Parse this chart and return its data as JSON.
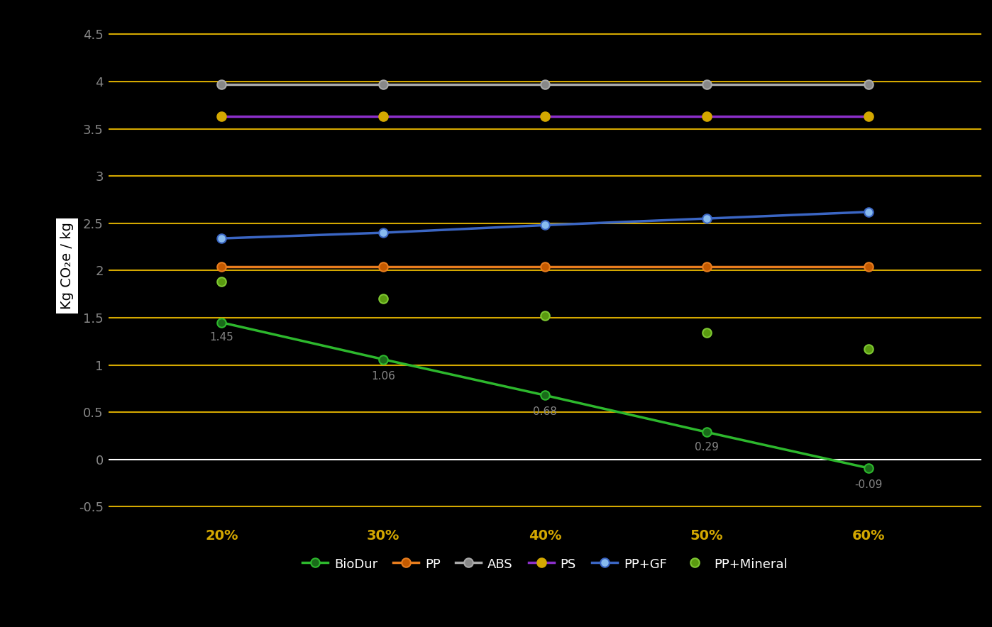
{
  "x_labels": [
    "20%",
    "30%",
    "40%",
    "50%",
    "60%"
  ],
  "x_values": [
    20,
    30,
    40,
    50,
    60
  ],
  "series": {
    "BioDur": {
      "values": [
        1.45,
        1.06,
        0.68,
        0.29,
        -0.09
      ],
      "line_color": "#2db82d",
      "marker_face": "#1a6b1a",
      "marker_edge": "#2db82d",
      "linewidth": 2.5,
      "zorder": 5
    },
    "PP": {
      "values": [
        2.04,
        2.04,
        2.04,
        2.04,
        2.04
      ],
      "line_color": "#e87d1e",
      "marker_face": "#c45a00",
      "marker_edge": "#e87d1e",
      "linewidth": 2.5,
      "zorder": 4
    },
    "ABS": {
      "values": [
        3.97,
        3.97,
        3.97,
        3.97,
        3.97
      ],
      "line_color": "#aaaaaa",
      "marker_face": "#888888",
      "marker_edge": "#aaaaaa",
      "linewidth": 2.5,
      "zorder": 4
    },
    "PS": {
      "values": [
        3.63,
        3.63,
        3.63,
        3.63,
        3.63
      ],
      "line_color": "#8b2fc9",
      "marker_face": "#d4a800",
      "marker_edge": "#d4a800",
      "linewidth": 2.5,
      "zorder": 4
    },
    "PP+GF": {
      "values": [
        2.34,
        2.4,
        2.48,
        2.55,
        2.62
      ],
      "line_color": "#3b66c4",
      "marker_face": "#88bbee",
      "marker_edge": "#3b66c4",
      "linewidth": 2.5,
      "zorder": 4
    },
    "PP+Mineral": {
      "values": [
        1.88,
        1.7,
        1.52,
        1.34,
        1.17
      ],
      "line_color": "#7ec832",
      "marker_face": "#5a9a10",
      "marker_edge": "#7ec832",
      "linewidth": 0,
      "zorder": 4
    }
  },
  "ann_labels": [
    "1.45",
    "1.06",
    "0.68",
    "0.29",
    "-0.09"
  ],
  "ann_offsets_x": [
    0,
    0,
    0,
    0,
    0
  ],
  "ann_offsets_y": [
    -0.1,
    -0.12,
    -0.12,
    -0.1,
    -0.12
  ],
  "ylabel": "Kg CO₂e / kg",
  "ylim": [
    -0.65,
    4.75
  ],
  "ytick_values": [
    -0.5,
    0.0,
    0.5,
    1.0,
    1.5,
    2.0,
    2.5,
    3.0,
    3.5,
    4.0,
    4.5
  ],
  "ytick_labels": [
    "-0.5",
    "0",
    "0.5",
    "1",
    "1.5",
    "2",
    "2.5",
    "3",
    "3.5",
    "4",
    "4.5"
  ],
  "background_color": "#000000",
  "plot_background": "#000000",
  "grid_color_yellow": "#d4a800",
  "grid_color_white": "#ffffff",
  "x_label_color": "#d4a800",
  "ytick_color": "#888888",
  "ylabel_color": "#000000",
  "ylabel_bg": "#ffffff",
  "ann_color": "#888888"
}
